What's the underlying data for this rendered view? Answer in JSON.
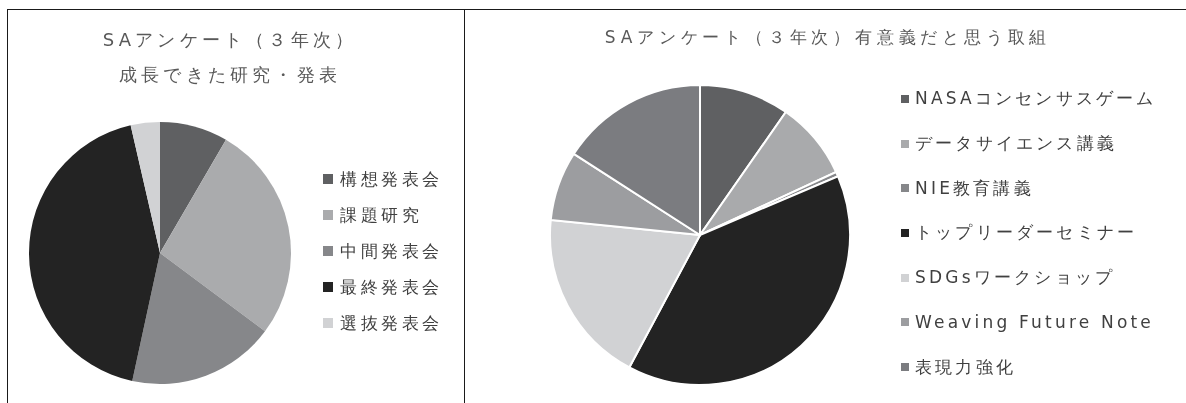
{
  "chart_data": [
    {
      "type": "pie",
      "title": "SAアンケート（３年次）",
      "subtitle": "成長できた研究・発表",
      "categories": [
        "構想発表会",
        "課題研究",
        "中間発表会",
        "最終発表会",
        "選抜発表会"
      ],
      "values": [
        8.4,
        26.8,
        18.2,
        43.0,
        3.6
      ],
      "colors": [
        "#5f6062",
        "#aaabad",
        "#86878a",
        "#232323",
        "#d1d2d4"
      ],
      "legend": "right"
    },
    {
      "type": "pie",
      "title": "SAアンケート（３年次）有意義だと思う取組",
      "categories": [
        "NASAコンセンサスゲーム",
        "データサイエンス講義",
        "NIE教育講義",
        "トップリーダーセミナー",
        "SDGsワークショップ",
        "Weaving Future Note",
        "表現力強化"
      ],
      "values": [
        9.7,
        8.4,
        0.5,
        39.2,
        18.8,
        7.5,
        15.9
      ],
      "colors": [
        "#5f6062",
        "#a9aaac",
        "#86878a",
        "#232323",
        "#d1d2d4",
        "#9c9da0",
        "#7b7c80"
      ],
      "legend": "right"
    }
  ]
}
